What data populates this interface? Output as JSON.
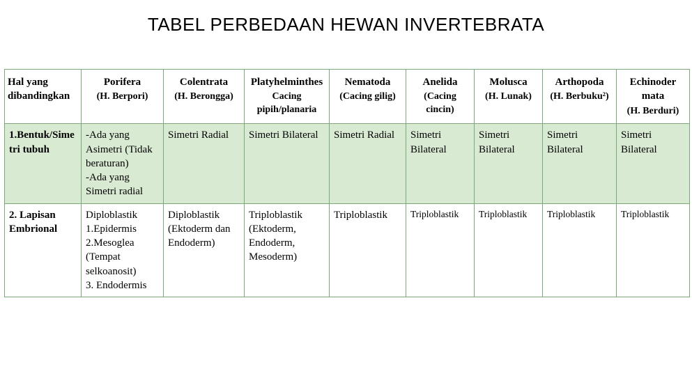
{
  "title": "TABEL PERBEDAAN HEWAN INVERTEBRATA",
  "colors": {
    "border": "#7aa876",
    "shaded_row_bg": "#d9ead3",
    "plain_row_bg": "#ffffff",
    "text": "#000000"
  },
  "typography": {
    "title_font": "Arial",
    "title_size_pt": 20,
    "body_font": "Times New Roman",
    "body_size_pt": 12
  },
  "table": {
    "columns": [
      {
        "main": "Hal yang dibandingkan",
        "sub": "",
        "sub2": ""
      },
      {
        "main": "Porifera",
        "sub": "(H. Berpori)",
        "sub2": ""
      },
      {
        "main": "Colentrata",
        "sub": "(H. Berongga)",
        "sub2": ""
      },
      {
        "main": "Platyhelminthes",
        "sub": "Cacing pipih/planaria",
        "sub2": ""
      },
      {
        "main": "Nematoda",
        "sub": "(Cacing gilig)",
        "sub2": ""
      },
      {
        "main": "Anelida",
        "sub": "(Cacing cincin)",
        "sub2": ""
      },
      {
        "main": "Molusca",
        "sub": "(H. Lunak)",
        "sub2": ""
      },
      {
        "main": "Arthopoda",
        "sub": "(H. Berbuku²)",
        "sub2": ""
      },
      {
        "main": "Echinoder mata",
        "sub": "(H. Berduri)",
        "sub2": ""
      }
    ],
    "rows": [
      {
        "shaded": true,
        "cells": [
          "1.Bentuk/Simetri tubuh",
          "-Ada yang Asimetri (Tidak beraturan)\n-Ada yang Simetri radial",
          "Simetri Radial",
          "Simetri Bilateral",
          "Simetri Radial",
          "Simetri Bilateral",
          "Simetri Bilateral",
          "Simetri Bilateral",
          "Simetri Bilateral"
        ]
      },
      {
        "shaded": false,
        "cells": [
          "2. Lapisan Embrional",
          "Diploblastik\n1.Epidermis\n2.Mesoglea (Tempat selkoanosit)\n3.  Endodermis",
          "Diploblastik (Ektoderm dan Endoderm)",
          "Triploblastik (Ektoderm, Endoderm, Mesoderm)",
          "Triploblastik",
          "Triploblastik",
          "Triploblastik",
          "Triploblastik",
          "Triploblastik"
        ],
        "small_font_cols": [
          5,
          6,
          7,
          8
        ]
      }
    ]
  }
}
